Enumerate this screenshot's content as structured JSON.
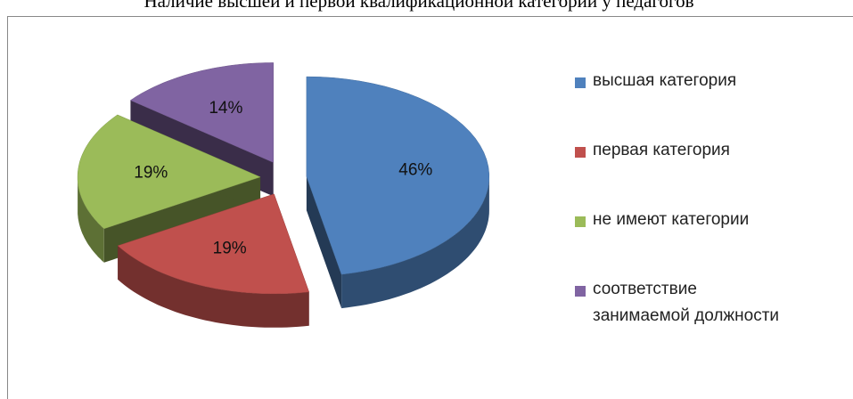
{
  "chart_data": {
    "type": "pie3d",
    "title": "Наличие высшей и первой квалификационной категории у педагогов",
    "categories": [
      "высшая категория",
      "первая категория",
      "не имеют категории",
      "соответствие занимаемой должности"
    ],
    "values": [
      46,
      19,
      19,
      14
    ],
    "value_labels": [
      "46%",
      "19%",
      "19%",
      "14%"
    ],
    "colors": [
      "#4f81bd",
      "#c0504d",
      "#9bbb59",
      "#8064a2"
    ],
    "legend": "right"
  }
}
